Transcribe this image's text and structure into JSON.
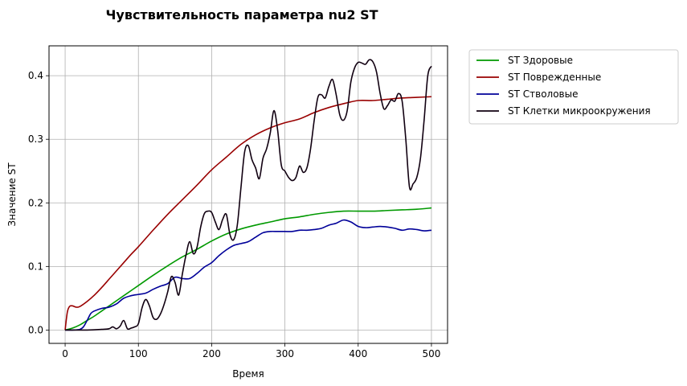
{
  "chart_data": {
    "type": "line",
    "title": "Чувствительность параметра nu2 ST",
    "xlabel": "Время",
    "ylabel": "Значение ST",
    "xlim": [
      -22,
      522
    ],
    "ylim": [
      -0.021,
      0.447
    ],
    "xticks": [
      0,
      100,
      200,
      300,
      400,
      500
    ],
    "yticks": [
      0.0,
      0.1,
      0.2,
      0.3,
      0.4
    ],
    "xtick_labels": [
      "0",
      "100",
      "200",
      "300",
      "400",
      "500"
    ],
    "ytick_labels": [
      "0.0",
      "0.1",
      "0.2",
      "0.3",
      "0.4"
    ],
    "grid": true,
    "legend_position": "outside-top-right",
    "series": [
      {
        "name": "ST Здоровые",
        "color": "#009900",
        "x": [
          0,
          10,
          20,
          30,
          40,
          50,
          60,
          70,
          80,
          90,
          100,
          120,
          140,
          160,
          180,
          200,
          220,
          240,
          260,
          280,
          300,
          320,
          340,
          360,
          380,
          400,
          420,
          440,
          460,
          480,
          500
        ],
        "y": [
          0.0,
          0.003,
          0.008,
          0.015,
          0.022,
          0.03,
          0.038,
          0.046,
          0.054,
          0.062,
          0.07,
          0.086,
          0.101,
          0.115,
          0.127,
          0.14,
          0.151,
          0.159,
          0.165,
          0.17,
          0.175,
          0.178,
          0.182,
          0.185,
          0.187,
          0.187,
          0.187,
          0.188,
          0.189,
          0.19,
          0.192
        ]
      },
      {
        "name": "ST Поврежденные",
        "color": "#990000",
        "x": [
          0,
          3,
          6,
          10,
          15,
          20,
          30,
          40,
          50,
          60,
          70,
          80,
          90,
          100,
          120,
          140,
          160,
          180,
          200,
          220,
          240,
          260,
          280,
          300,
          320,
          340,
          360,
          380,
          400,
          420,
          440,
          460,
          480,
          500
        ],
        "y": [
          0.0,
          0.028,
          0.037,
          0.038,
          0.036,
          0.037,
          0.045,
          0.055,
          0.067,
          0.08,
          0.093,
          0.106,
          0.119,
          0.131,
          0.157,
          0.182,
          0.205,
          0.228,
          0.252,
          0.272,
          0.292,
          0.307,
          0.318,
          0.326,
          0.332,
          0.342,
          0.35,
          0.356,
          0.361,
          0.361,
          0.363,
          0.365,
          0.366,
          0.367
        ]
      },
      {
        "name": "ST Стволовые",
        "color": "#000099",
        "x": [
          0,
          10,
          20,
          25,
          30,
          35,
          40,
          50,
          60,
          70,
          80,
          90,
          100,
          110,
          120,
          130,
          140,
          150,
          160,
          170,
          180,
          190,
          200,
          210,
          220,
          230,
          240,
          250,
          260,
          270,
          280,
          290,
          300,
          310,
          320,
          330,
          340,
          350,
          360,
          370,
          380,
          390,
          400,
          410,
          420,
          430,
          440,
          450,
          460,
          470,
          480,
          490,
          500
        ],
        "y": [
          0.0,
          0.0,
          0.001,
          0.005,
          0.015,
          0.026,
          0.03,
          0.034,
          0.036,
          0.041,
          0.05,
          0.054,
          0.056,
          0.058,
          0.064,
          0.069,
          0.073,
          0.083,
          0.081,
          0.081,
          0.089,
          0.099,
          0.106,
          0.117,
          0.126,
          0.133,
          0.136,
          0.139,
          0.146,
          0.153,
          0.155,
          0.155,
          0.155,
          0.155,
          0.157,
          0.157,
          0.158,
          0.16,
          0.165,
          0.168,
          0.173,
          0.17,
          0.163,
          0.161,
          0.162,
          0.163,
          0.162,
          0.16,
          0.157,
          0.159,
          0.158,
          0.156,
          0.157
        ]
      },
      {
        "name": "ST Клетки микроокружения",
        "color": "#110011",
        "x": [
          0,
          30,
          50,
          60,
          65,
          70,
          75,
          80,
          85,
          90,
          95,
          100,
          105,
          110,
          115,
          120,
          125,
          130,
          135,
          140,
          145,
          150,
          155,
          160,
          165,
          170,
          175,
          180,
          185,
          190,
          195,
          200,
          205,
          210,
          215,
          220,
          225,
          230,
          235,
          240,
          245,
          250,
          255,
          260,
          265,
          270,
          275,
          280,
          285,
          290,
          295,
          300,
          305,
          310,
          315,
          320,
          325,
          330,
          335,
          340,
          345,
          350,
          355,
          360,
          365,
          370,
          375,
          380,
          385,
          390,
          395,
          400,
          405,
          410,
          415,
          420,
          425,
          430,
          435,
          440,
          445,
          450,
          455,
          460,
          465,
          470,
          475,
          480,
          485,
          490,
          495,
          500
        ],
        "y": [
          0.0,
          0.0,
          0.001,
          0.002,
          0.005,
          0.002,
          0.006,
          0.015,
          0.002,
          0.003,
          0.005,
          0.01,
          0.035,
          0.048,
          0.038,
          0.02,
          0.017,
          0.025,
          0.04,
          0.06,
          0.084,
          0.075,
          0.055,
          0.088,
          0.118,
          0.139,
          0.12,
          0.13,
          0.162,
          0.183,
          0.187,
          0.185,
          0.17,
          0.158,
          0.174,
          0.182,
          0.15,
          0.142,
          0.165,
          0.224,
          0.28,
          0.29,
          0.268,
          0.255,
          0.238,
          0.27,
          0.285,
          0.31,
          0.345,
          0.315,
          0.26,
          0.25,
          0.24,
          0.235,
          0.24,
          0.258,
          0.248,
          0.255,
          0.285,
          0.33,
          0.366,
          0.37,
          0.365,
          0.383,
          0.394,
          0.37,
          0.338,
          0.33,
          0.345,
          0.39,
          0.412,
          0.421,
          0.42,
          0.418,
          0.425,
          0.422,
          0.406,
          0.372,
          0.348,
          0.353,
          0.362,
          0.36,
          0.372,
          0.36,
          0.3,
          0.225,
          0.23,
          0.24,
          0.27,
          0.33,
          0.4,
          0.415
        ]
      }
    ]
  }
}
